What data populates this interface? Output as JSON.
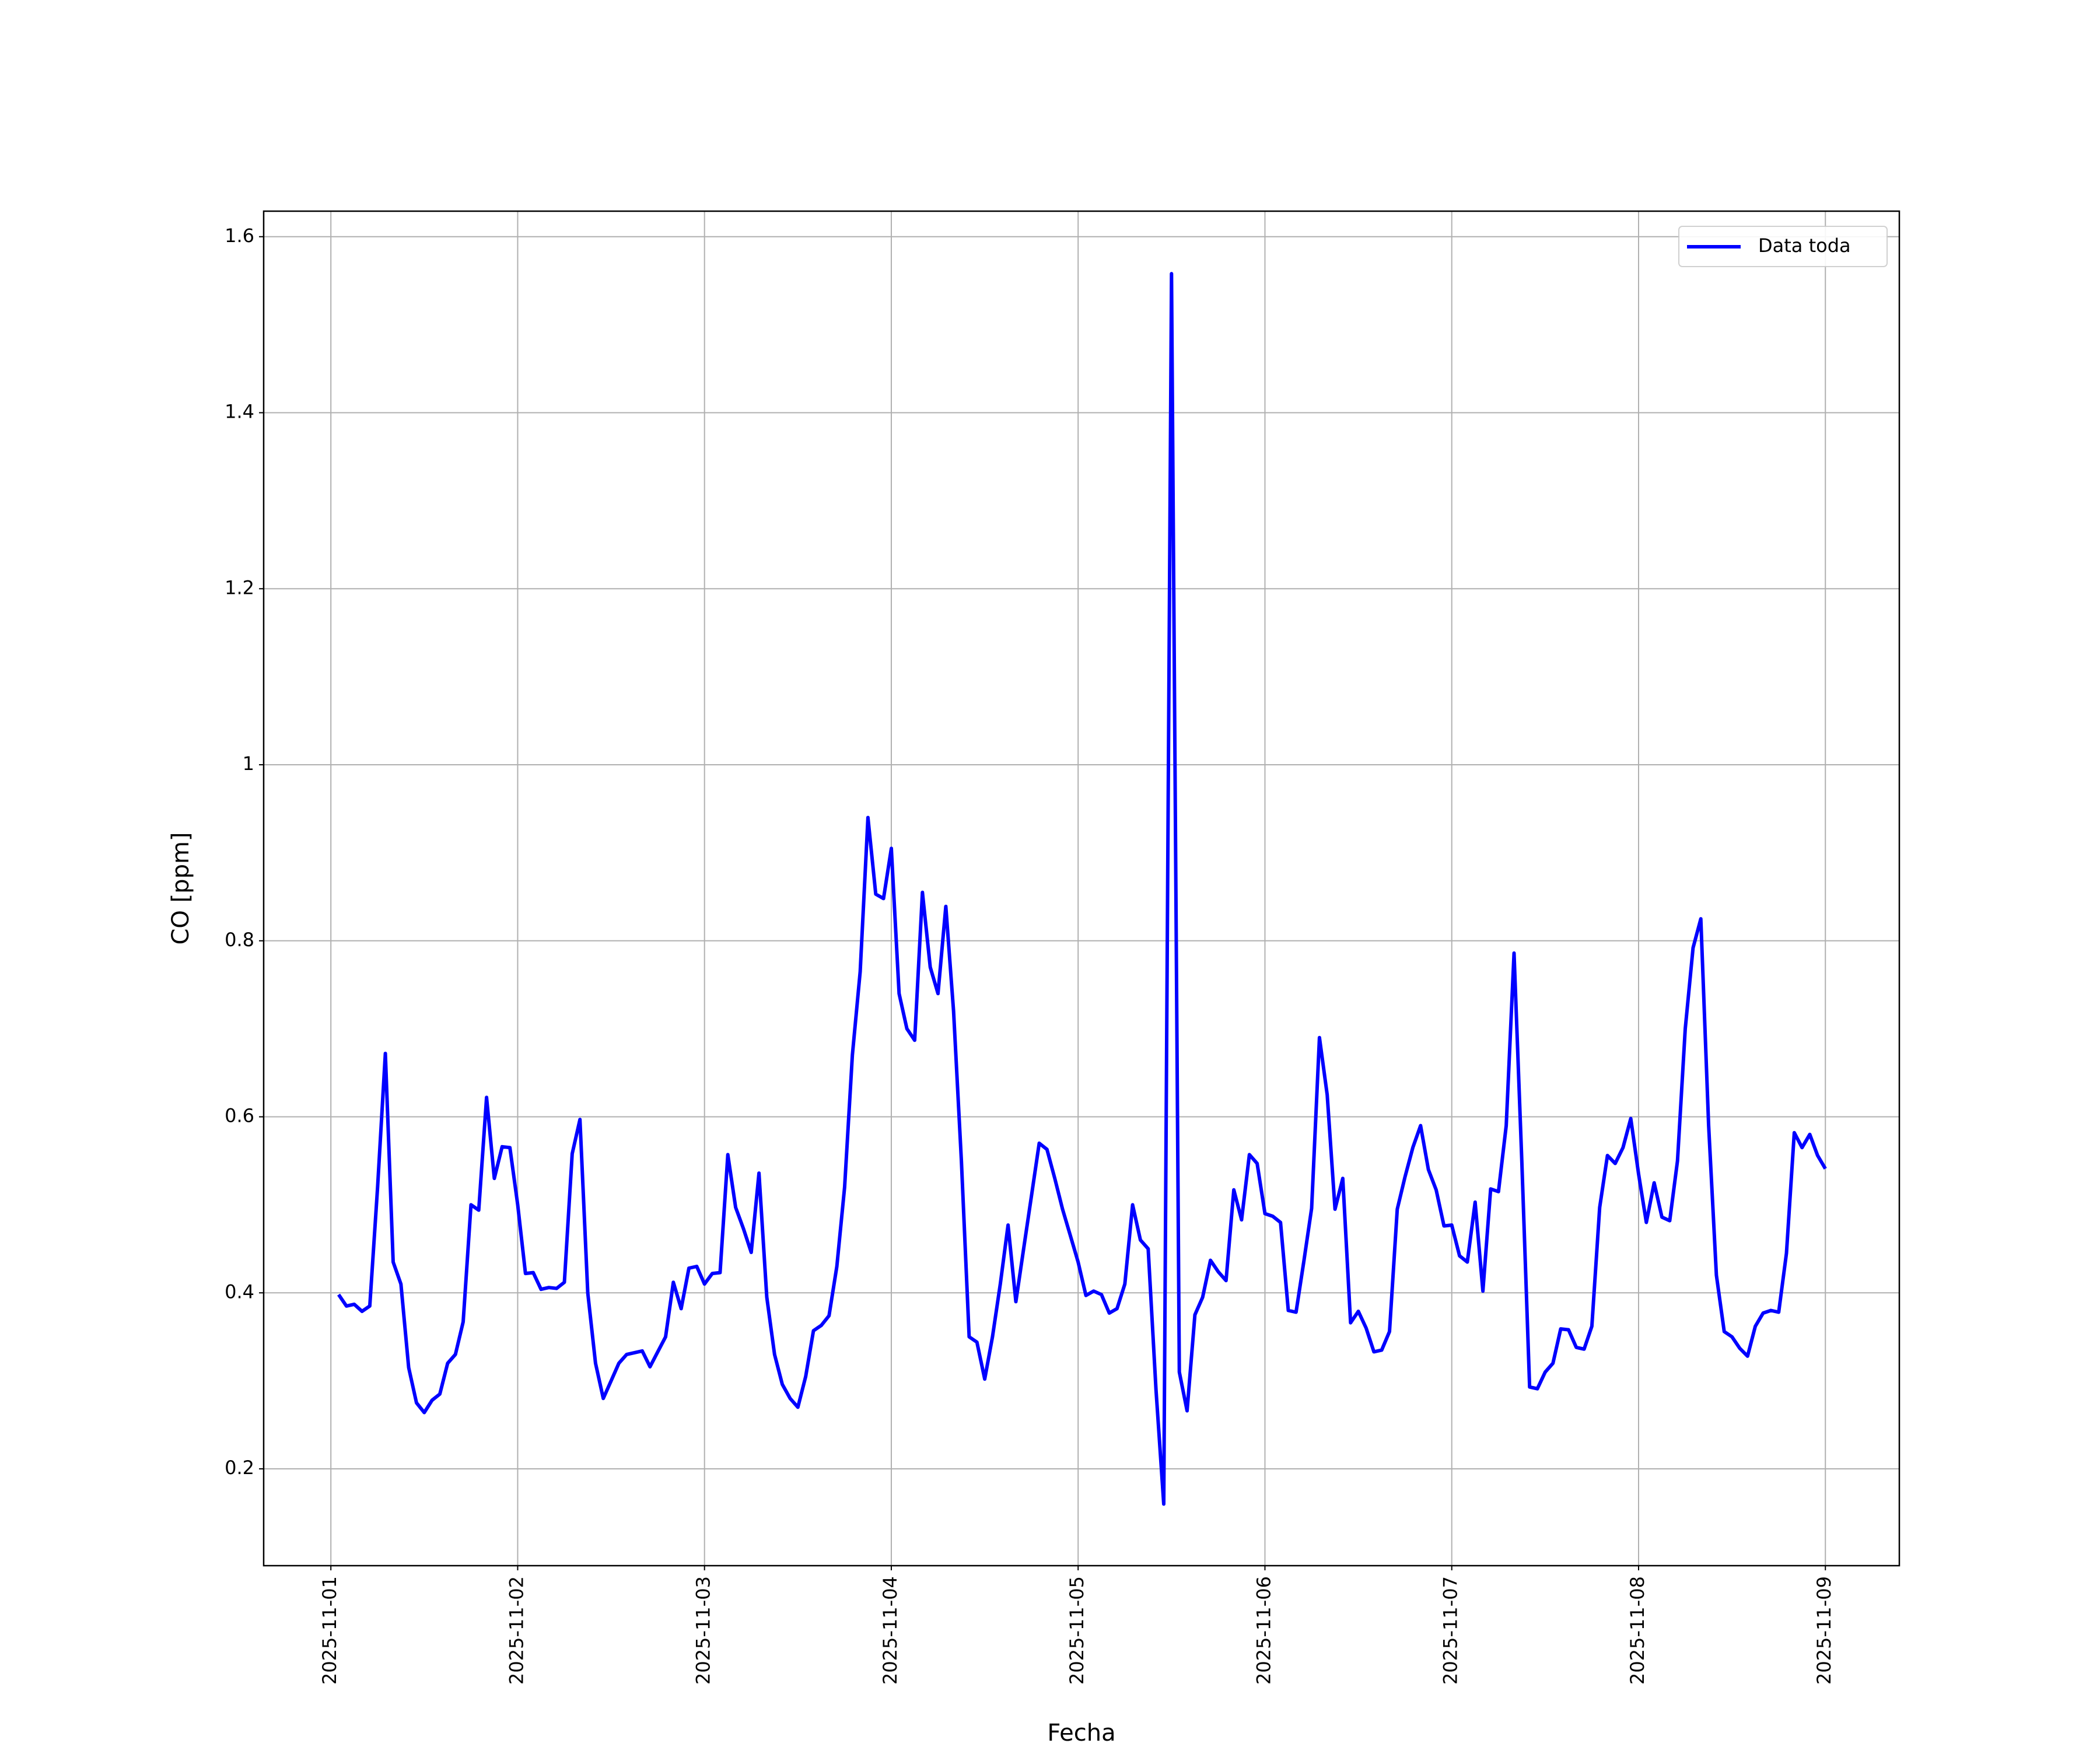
{
  "chart_data": {
    "type": "line",
    "x_label": "Fecha",
    "y_label": "CO [ppm]",
    "xlim": [
      "2025-10-31T15:22",
      "2025-11-09T09:30"
    ],
    "xticks": [
      "2025-11-01",
      "2025-11-02",
      "2025-11-03",
      "2025-11-04",
      "2025-11-05",
      "2025-11-06",
      "2025-11-07",
      "2025-11-08",
      "2025-11-09"
    ],
    "ylim": [
      0.09,
      1.629
    ],
    "yticks": [
      0.2,
      0.4,
      0.6,
      0.8,
      1.0,
      1.2,
      1.4,
      1.6
    ],
    "grid": true,
    "legend": "upper right",
    "x": [
      "2025-11-01T01:00",
      "2025-11-01T02:00",
      "2025-11-01T03:00",
      "2025-11-01T04:00",
      "2025-11-01T05:00",
      "2025-11-01T06:00",
      "2025-11-01T07:00",
      "2025-11-01T08:00",
      "2025-11-01T09:00",
      "2025-11-01T10:00",
      "2025-11-01T11:00",
      "2025-11-01T12:00",
      "2025-11-01T13:00",
      "2025-11-01T14:00",
      "2025-11-01T15:00",
      "2025-11-01T16:00",
      "2025-11-01T17:00",
      "2025-11-01T18:00",
      "2025-11-01T19:00",
      "2025-11-01T20:00",
      "2025-11-01T21:00",
      "2025-11-01T22:00",
      "2025-11-01T23:00",
      "2025-11-02T00:00",
      "2025-11-02T01:00",
      "2025-11-02T02:00",
      "2025-11-02T03:00",
      "2025-11-02T04:00",
      "2025-11-02T05:00",
      "2025-11-02T06:00",
      "2025-11-02T07:00",
      "2025-11-02T08:00",
      "2025-11-02T09:00",
      "2025-11-02T10:00",
      "2025-11-02T11:00",
      "2025-11-02T12:00",
      "2025-11-02T13:00",
      "2025-11-02T14:00",
      "2025-11-02T15:00",
      "2025-11-02T16:00",
      "2025-11-02T17:00",
      "2025-11-02T18:00",
      "2025-11-02T19:00",
      "2025-11-02T20:00",
      "2025-11-02T21:00",
      "2025-11-02T22:00",
      "2025-11-02T23:00",
      "2025-11-03T00:00",
      "2025-11-03T01:00",
      "2025-11-03T02:00",
      "2025-11-03T03:00",
      "2025-11-03T04:00",
      "2025-11-03T05:00",
      "2025-11-03T06:00",
      "2025-11-03T07:00",
      "2025-11-03T08:00",
      "2025-11-03T09:00",
      "2025-11-03T10:00",
      "2025-11-03T11:00",
      "2025-11-03T12:00",
      "2025-11-03T13:00",
      "2025-11-03T14:00",
      "2025-11-03T15:00",
      "2025-11-03T16:00",
      "2025-11-03T17:00",
      "2025-11-03T18:00",
      "2025-11-03T19:00",
      "2025-11-03T20:00",
      "2025-11-03T21:00",
      "2025-11-03T22:00",
      "2025-11-03T23:00",
      "2025-11-04T00:00",
      "2025-11-04T01:00",
      "2025-11-04T02:00",
      "2025-11-04T03:00",
      "2025-11-04T04:00",
      "2025-11-04T05:00",
      "2025-11-04T06:00",
      "2025-11-04T07:00",
      "2025-11-04T08:00",
      "2025-11-04T09:00",
      "2025-11-04T10:00",
      "2025-11-04T11:00",
      "2025-11-04T12:00",
      "2025-11-04T13:00",
      "2025-11-04T14:00",
      "2025-11-04T15:00",
      "2025-11-04T16:00",
      "2025-11-04T17:00",
      "2025-11-04T18:00",
      "2025-11-04T19:00",
      "2025-11-04T20:00",
      "2025-11-04T21:00",
      "2025-11-04T22:00",
      "2025-11-04T23:00",
      "2025-11-05T00:00",
      "2025-11-05T01:00",
      "2025-11-05T02:00",
      "2025-11-05T03:00",
      "2025-11-05T04:00",
      "2025-11-05T05:00",
      "2025-11-05T06:00",
      "2025-11-05T07:00",
      "2025-11-05T08:00",
      "2025-11-05T09:00",
      "2025-11-05T10:00",
      "2025-11-05T11:00",
      "2025-11-05T12:00",
      "2025-11-05T13:00",
      "2025-11-05T14:00",
      "2025-11-05T15:00",
      "2025-11-05T16:00",
      "2025-11-05T17:00",
      "2025-11-05T18:00",
      "2025-11-05T19:00",
      "2025-11-05T20:00",
      "2025-11-05T21:00",
      "2025-11-05T22:00",
      "2025-11-05T23:00",
      "2025-11-06T00:00",
      "2025-11-06T01:00",
      "2025-11-06T02:00",
      "2025-11-06T03:00",
      "2025-11-06T04:00",
      "2025-11-06T05:00",
      "2025-11-06T06:00",
      "2025-11-06T07:00",
      "2025-11-06T08:00",
      "2025-11-06T09:00",
      "2025-11-06T10:00",
      "2025-11-06T11:00",
      "2025-11-06T12:00",
      "2025-11-06T13:00",
      "2025-11-06T14:00",
      "2025-11-06T15:00",
      "2025-11-06T16:00",
      "2025-11-06T17:00",
      "2025-11-06T18:00",
      "2025-11-06T19:00",
      "2025-11-06T20:00",
      "2025-11-06T21:00",
      "2025-11-06T22:00",
      "2025-11-06T23:00",
      "2025-11-07T00:00",
      "2025-11-07T01:00",
      "2025-11-07T02:00",
      "2025-11-07T03:00",
      "2025-11-07T04:00",
      "2025-11-07T05:00",
      "2025-11-07T06:00",
      "2025-11-07T07:00",
      "2025-11-07T08:00",
      "2025-11-07T09:00",
      "2025-11-07T10:00",
      "2025-11-07T11:00",
      "2025-11-07T12:00",
      "2025-11-07T13:00",
      "2025-11-07T14:00",
      "2025-11-07T15:00",
      "2025-11-07T16:00",
      "2025-11-07T17:00",
      "2025-11-07T18:00",
      "2025-11-07T19:00",
      "2025-11-07T20:00",
      "2025-11-07T21:00",
      "2025-11-07T22:00",
      "2025-11-07T23:00",
      "2025-11-08T00:00",
      "2025-11-08T01:00",
      "2025-11-08T02:00",
      "2025-11-08T03:00",
      "2025-11-08T04:00",
      "2025-11-08T05:00",
      "2025-11-08T06:00",
      "2025-11-08T07:00",
      "2025-11-08T08:00",
      "2025-11-08T09:00",
      "2025-11-08T10:00",
      "2025-11-08T11:00",
      "2025-11-08T12:00",
      "2025-11-08T13:00",
      "2025-11-08T14:00",
      "2025-11-08T15:00",
      "2025-11-08T16:00",
      "2025-11-08T17:00",
      "2025-11-08T18:00",
      "2025-11-08T19:00",
      "2025-11-08T20:00",
      "2025-11-08T21:00",
      "2025-11-08T22:00",
      "2025-11-08T23:00",
      "2025-11-09T00:00"
    ],
    "series": [
      {
        "name": "Data toda",
        "color": "#0000ff",
        "values": [
          0.398,
          0.385,
          0.387,
          0.379,
          0.385,
          0.52,
          0.672,
          0.435,
          0.41,
          0.315,
          0.275,
          0.264,
          0.278,
          0.285,
          0.32,
          0.33,
          0.367,
          0.5,
          0.494,
          0.622,
          0.53,
          0.566,
          0.565,
          0.5,
          0.422,
          0.423,
          0.404,
          0.406,
          0.405,
          0.412,
          0.558,
          0.597,
          0.4,
          0.32,
          0.28,
          0.3,
          0.32,
          0.33,
          0.332,
          0.334,
          0.316,
          0.333,
          0.35,
          0.412,
          0.382,
          0.428,
          0.43,
          0.41,
          0.422,
          0.423,
          0.557,
          0.497,
          0.473,
          0.446,
          0.536,
          0.395,
          0.33,
          0.296,
          0.28,
          0.27,
          0.305,
          0.357,
          0.363,
          0.374,
          0.43,
          0.52,
          0.67,
          0.765,
          0.94,
          0.853,
          0.848,
          0.905,
          0.74,
          0.7,
          0.687,
          0.855,
          0.77,
          0.74,
          0.839,
          0.72,
          0.55,
          0.35,
          0.344,
          0.302,
          0.35,
          0.41,
          0.477,
          0.39,
          0.45,
          0.51,
          0.57,
          0.563,
          0.53,
          0.495,
          0.465,
          0.435,
          0.397,
          0.402,
          0.398,
          0.377,
          0.382,
          0.41,
          0.5,
          0.46,
          0.45,
          0.29,
          0.16,
          1.558,
          0.31,
          0.266,
          0.375,
          0.395,
          0.437,
          0.424,
          0.414,
          0.517,
          0.483,
          0.557,
          0.547,
          0.49,
          0.487,
          0.48,
          0.38,
          0.378,
          0.436,
          0.496,
          0.69,
          0.625,
          0.495,
          0.53,
          0.366,
          0.379,
          0.36,
          0.333,
          0.335,
          0.356,
          0.495,
          0.532,
          0.565,
          0.59,
          0.54,
          0.517,
          0.476,
          0.477,
          0.442,
          0.435,
          0.503,
          0.402,
          0.518,
          0.515,
          0.59,
          0.786,
          0.55,
          0.293,
          0.291,
          0.31,
          0.32,
          0.359,
          0.358,
          0.338,
          0.336,
          0.362,
          0.497,
          0.556,
          0.547,
          0.565,
          0.598,
          0.535,
          0.48,
          0.525,
          0.486,
          0.482,
          0.55,
          0.7,
          0.792,
          0.825,
          0.59,
          0.42,
          0.356,
          0.35,
          0.337,
          0.328,
          0.362,
          0.377,
          0.38,
          0.378,
          0.445,
          0.582,
          0.565,
          0.58,
          0.556,
          0.541
        ]
      }
    ]
  }
}
